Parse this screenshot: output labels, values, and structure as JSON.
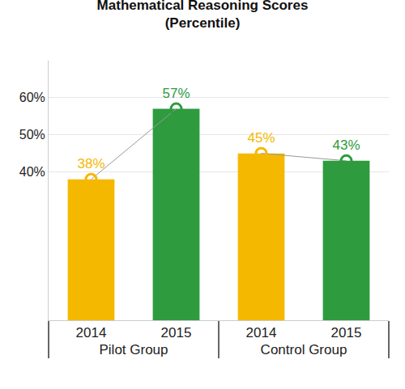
{
  "chart_data": {
    "type": "bar",
    "title": "Mathematical Reasoning Scores",
    "subtitle": "(Percentile)",
    "categories": [
      "2014",
      "2015",
      "2014",
      "2015"
    ],
    "groups": [
      "Pilot Group",
      "Pilot Group",
      "Control Group",
      "Control Group"
    ],
    "values": [
      38,
      57,
      45,
      43
    ],
    "value_labels": [
      "38%",
      "57%",
      "45%",
      "43%"
    ],
    "colors": [
      "#f5b800",
      "#2e9b3e",
      "#f5b800",
      "#2e9b3e"
    ],
    "data_labels": true,
    "marker": "circle-open",
    "line_style": "solid",
    "ylim": [
      0,
      70
    ],
    "yticks": [
      {
        "value": 40,
        "label": "40%"
      },
      {
        "value": 50,
        "label": "50%"
      },
      {
        "value": 60,
        "label": "60%"
      }
    ],
    "grid": true
  }
}
